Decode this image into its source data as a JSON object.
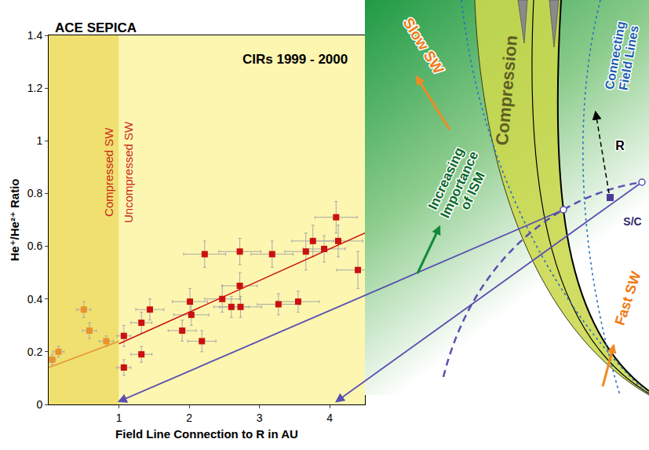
{
  "chart_data": {
    "type": "scatter",
    "title": "ACE SEPICA",
    "x_label": "Field Line Connection to R in AU",
    "y_label": "He⁺/He²⁺ Ratio",
    "xlim": [
      0,
      4.5
    ],
    "ylim": [
      0,
      1.4
    ],
    "xticks": [
      1,
      2,
      3,
      4
    ],
    "yticks": [
      0,
      0.2,
      0.4,
      0.6,
      0.8,
      1,
      1.2,
      1.4
    ],
    "grid": false,
    "annotations": [
      "CIRs 1999 - 2000"
    ],
    "regions": [
      {
        "label": "Compressed SW",
        "xlim": [
          0,
          1
        ],
        "color": "#f0e070"
      },
      {
        "label": "Uncompressed SW",
        "xlim": [
          1,
          4.5
        ],
        "color": "#fdf6b0"
      }
    ],
    "series": [
      {
        "type": "scatter",
        "marker": "square",
        "color": "#e8922e",
        "x": [
          0.05,
          0.14,
          0.5,
          0.58,
          0.82
        ],
        "values": [
          0.17,
          0.2,
          0.36,
          0.28,
          0.24
        ],
        "x_error": [
          0.05,
          0.08,
          0.1,
          0.1,
          0.1
        ],
        "y_error": [
          0.02,
          0.02,
          0.03,
          0.03,
          0.02
        ]
      },
      {
        "type": "scatter",
        "marker": "square",
        "color": "#cc1010",
        "x": [
          1.07,
          1.07,
          1.32,
          1.32,
          1.44,
          1.9,
          2.01,
          2.03,
          2.18,
          2.22,
          2.47,
          2.6,
          2.73,
          2.72,
          2.72,
          3.18,
          3.27,
          3.55,
          3.66,
          3.76,
          3.92,
          4.09,
          4.12,
          4.4
        ],
        "values": [
          0.26,
          0.14,
          0.31,
          0.19,
          0.36,
          0.28,
          0.39,
          0.34,
          0.24,
          0.57,
          0.4,
          0.37,
          0.37,
          0.45,
          0.58,
          0.57,
          0.38,
          0.39,
          0.58,
          0.62,
          0.59,
          0.71,
          0.62,
          0.51
        ],
        "x_error": [
          0.1,
          0.1,
          0.15,
          0.15,
          0.2,
          0.2,
          0.25,
          0.25,
          0.2,
          0.3,
          0.25,
          0.25,
          0.3,
          0.25,
          0.3,
          0.3,
          0.3,
          0.3,
          0.3,
          0.3,
          0.3,
          0.3,
          0.35,
          0.3
        ],
        "y_error": [
          0.04,
          0.03,
          0.04,
          0.03,
          0.04,
          0.04,
          0.05,
          0.04,
          0.04,
          0.05,
          0.05,
          0.04,
          0.04,
          0.05,
          0.05,
          0.05,
          0.04,
          0.04,
          0.07,
          0.06,
          0.05,
          0.06,
          0.06,
          0.07
        ]
      },
      {
        "type": "line",
        "line_style": "solid",
        "color": "#e8922e",
        "x": [
          0,
          1
        ],
        "values": [
          0.14,
          0.24
        ]
      },
      {
        "type": "line",
        "line_style": "solid",
        "color": "#cc1010",
        "x": [
          1,
          4.5
        ],
        "values": [
          0.23,
          0.65
        ]
      }
    ]
  },
  "diagram": {
    "labels": {
      "slow_sw": "Slow SW",
      "compression": "Compression",
      "increasing_importance_of_ism": [
        "Increasing",
        "Importance",
        "of ISM"
      ],
      "connecting_field_lines": [
        "Connecting",
        "Field Lines"
      ],
      "r": "R",
      "spacecraft": "S/C",
      "fast_sw": "Fast SW"
    }
  }
}
